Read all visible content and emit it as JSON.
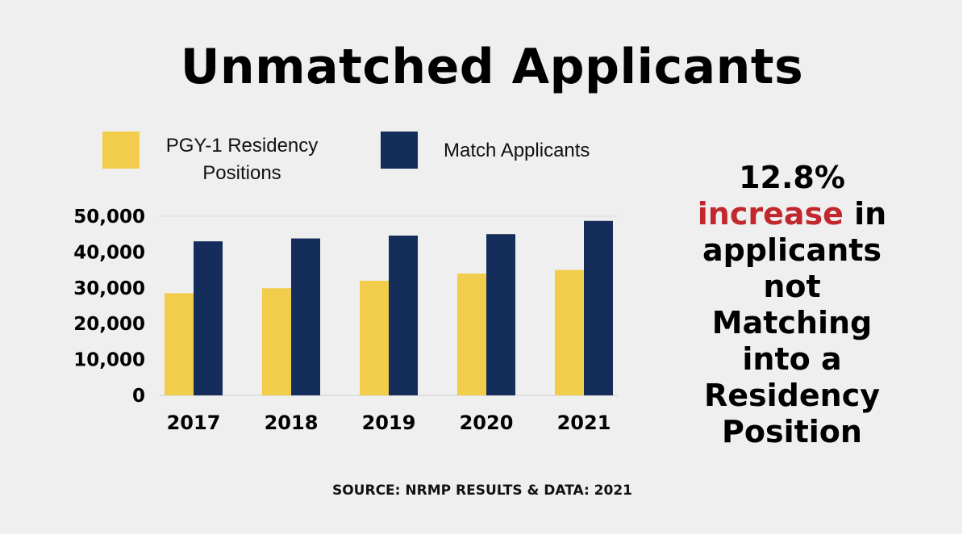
{
  "title": "Unmatched Applicants",
  "callout": {
    "line1": "12.8%",
    "highlight": "increase",
    "rest1": " in",
    "line3": "applicants",
    "line4": "not",
    "line5": "Matching",
    "line6": "into a",
    "line7": "Residency",
    "line8": "Position"
  },
  "source": "SOURCE: NRMP RESULTS & DATA: 2021",
  "colors": {
    "positions": "#f2cd4b",
    "applicants": "#142d5a",
    "accent": "#c1272d"
  },
  "chart_data": {
    "type": "bar",
    "title": "Unmatched Applicants",
    "categories": [
      "2017",
      "2018",
      "2019",
      "2020",
      "2021"
    ],
    "series": [
      {
        "name": "PGY-1 Residency Positions",
        "values": [
          28500,
          29900,
          32000,
          34000,
          35000
        ]
      },
      {
        "name": "Match Applicants",
        "values": [
          43000,
          43800,
          44600,
          45000,
          48700
        ]
      }
    ],
    "yticks": [
      "0",
      "10,000",
      "20,000",
      "30,000",
      "40,000",
      "50,000"
    ],
    "ylim": [
      0,
      50000
    ],
    "xlabel": "",
    "ylabel": "",
    "legend": "top",
    "grid": false
  }
}
